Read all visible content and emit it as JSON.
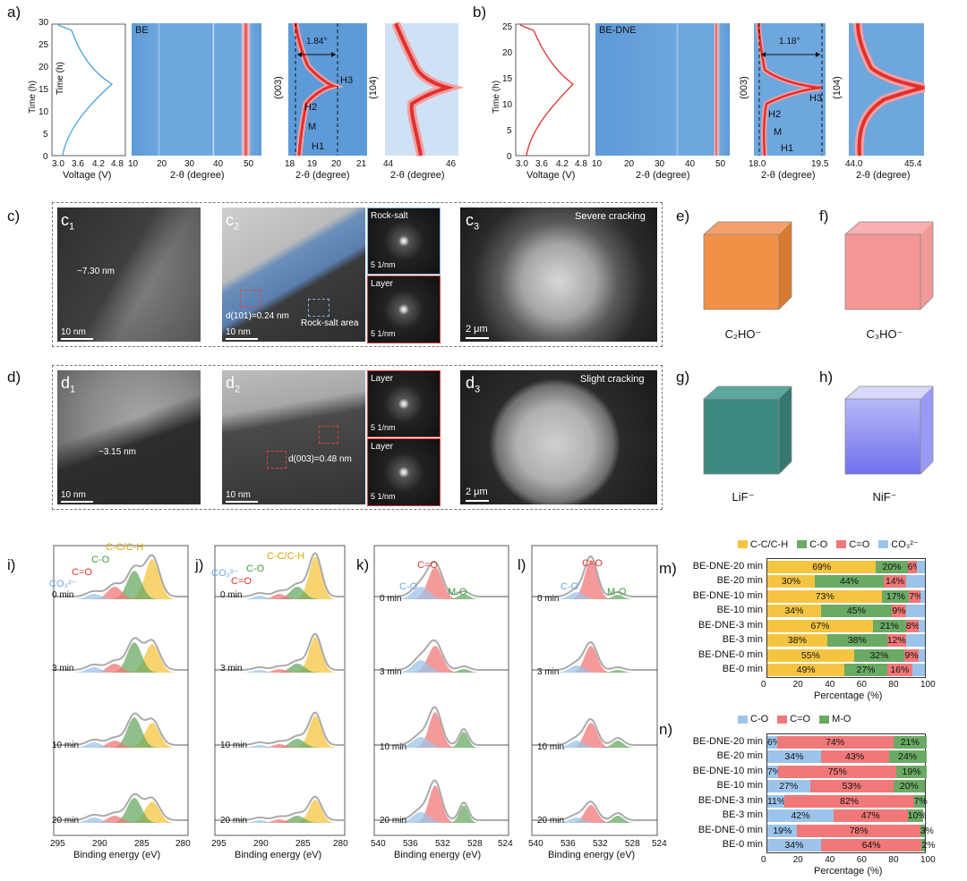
{
  "panel_labels": {
    "a": "a)",
    "b": "b)",
    "c": "c)",
    "d": "d)",
    "e": "e)",
    "f": "f)",
    "g": "g)",
    "h": "h)",
    "i": "i)",
    "j": "j)",
    "k": "k)",
    "l": "l)",
    "m": "m)",
    "n": "n)"
  },
  "panel_a": {
    "ylabel": "Time (h)",
    "yticks": [
      "0",
      "5",
      "10",
      "15",
      "20",
      "25",
      "30"
    ],
    "voltage_xlabel": "Voltage (V)",
    "voltage_xticks": [
      "3.0",
      "3.6",
      "4.2",
      "4.8"
    ],
    "map_label": "BE",
    "map_xticks": [
      "10",
      "20",
      "30",
      "40",
      "50"
    ],
    "xlabel": "2-θ (degree)",
    "zoom_003_ylabel": "(003)",
    "zoom_003_xticks": [
      "18",
      "19",
      "20",
      "21"
    ],
    "shift": "1.84°",
    "phases": [
      "H3",
      "H2",
      "M",
      "H1"
    ],
    "zoom_104_ylabel": "(104)",
    "zoom_104_xticks": [
      "44",
      "46"
    ]
  },
  "panel_b": {
    "ylabel": "Time (h)",
    "yticks": [
      "0",
      "5",
      "10",
      "15",
      "20",
      "25"
    ],
    "voltage_xlabel": "Voltage (V)",
    "voltage_xticks": [
      "3.0",
      "3.6",
      "4.2",
      "4.8"
    ],
    "map_label": "BE-DNE",
    "map_xticks": [
      "10",
      "20",
      "30",
      "40",
      "50"
    ],
    "xlabel": "2-θ (degree)",
    "zoom_003_ylabel": "(003)",
    "zoom_003_xticks": [
      "18.0",
      "19.5"
    ],
    "shift": "1.18°",
    "phases": [
      "H3",
      "H2",
      "M",
      "H1"
    ],
    "zoom_104_ylabel": "(104)",
    "zoom_104_xticks": [
      "44.0",
      "45.4"
    ]
  },
  "panel_c": {
    "c1": {
      "tag": "c",
      "sub": "1",
      "thickness": "~7.30 nm",
      "scale": "10 nm"
    },
    "c2": {
      "tag": "c",
      "sub": "2",
      "spacing": "d(101)=0.24 nm",
      "region": "Rock-salt area",
      "scale": "10 nm"
    },
    "fft_top": {
      "label": "Rock-salt",
      "scale": "5 1/nm"
    },
    "fft_bottom": {
      "label": "Layer",
      "scale": "5 1/nm"
    },
    "c3": {
      "tag": "c",
      "sub": "3",
      "note": "Severe cracking",
      "scale": "2 μm"
    }
  },
  "panel_d": {
    "d1": {
      "tag": "d",
      "sub": "1",
      "thickness": "~3.15 nm",
      "scale": "10 nm"
    },
    "d2": {
      "tag": "d",
      "sub": "2",
      "spacing": "d(003)=0.48 nm",
      "scale": "10 nm"
    },
    "fft_top": {
      "label": "Layer",
      "scale": "5 1/nm"
    },
    "fft_bottom": {
      "label": "Layer",
      "scale": "5 1/nm"
    },
    "d3": {
      "tag": "d",
      "sub": "3",
      "note": "Slight cracking",
      "scale": "2 μm"
    }
  },
  "cubes": [
    {
      "label": "C₂HO⁻",
      "color": "#f08a3c"
    },
    {
      "label": "C₃HO⁻",
      "color": "#f58a8a"
    },
    {
      "label": "LiF⁻",
      "color": "#3d8a80"
    },
    {
      "label": "NiF⁻",
      "color": "#8080f0"
    }
  ],
  "xps": {
    "xlabel": "Binding energy (eV)",
    "times": [
      "0 min",
      "3 min",
      "10 min",
      "20 min"
    ],
    "i": {
      "xticks": [
        "295",
        "290",
        "285",
        "280"
      ],
      "peaks": [
        "C-C/C-H",
        "C-O",
        "C=O",
        "CO₃²⁻"
      ]
    },
    "j": {
      "xticks": [
        "295",
        "290",
        "285",
        "280"
      ],
      "peaks": [
        "C-C/C-H",
        "C-O",
        "C=O",
        "CO₃²⁻"
      ]
    },
    "k": {
      "xticks": [
        "540",
        "536",
        "532",
        "528",
        "524"
      ],
      "peaks": [
        "C=O",
        "C-O",
        "M-O"
      ]
    },
    "l": {
      "xticks": [
        "540",
        "536",
        "532",
        "528",
        "524"
      ],
      "peaks": [
        "C=O",
        "C-O",
        "M-O"
      ]
    }
  },
  "chart_data": [
    {
      "type": "bar",
      "orientation": "horizontal-stacked",
      "categories": [
        "BE-DNE-20 min",
        "BE-20 min",
        "BE-DNE-10 min",
        "BE-10 min",
        "BE-DNE-3 min",
        "BE-3 min",
        "BE-DNE-0 min",
        "BE-0 min"
      ],
      "legend": [
        "C-C/C-H",
        "C-O",
        "C=O",
        "CO₃²⁻"
      ],
      "colors": [
        "#f5c542",
        "#6aaa64",
        "#f07878",
        "#9cc4ea"
      ],
      "series": [
        {
          "name": "C-C/C-H",
          "values": [
            69,
            30,
            73,
            34,
            67,
            38,
            55,
            49
          ]
        },
        {
          "name": "C-O",
          "values": [
            20,
            44,
            17,
            45,
            21,
            38,
            32,
            27
          ]
        },
        {
          "name": "C=O",
          "values": [
            6,
            14,
            7,
            9,
            8,
            12,
            9,
            16
          ]
        },
        {
          "name": "CO₃²⁻",
          "values": [
            5,
            12,
            3,
            12,
            4,
            12,
            4,
            8
          ]
        }
      ],
      "labels_shown": [
        [
          "69%",
          "20%",
          "6%"
        ],
        [
          "30%",
          "44%",
          "14%"
        ],
        [
          "73%",
          "17%",
          "7%"
        ],
        [
          "34%",
          "45%",
          "9%"
        ],
        [
          "67%",
          "21%",
          "8%"
        ],
        [
          "38%",
          "38%",
          "12%"
        ],
        [
          "55%",
          "32%",
          "9%"
        ],
        [
          "49%",
          "27%",
          "16%"
        ]
      ],
      "xlabel": "Percentage (%)",
      "xticks": [
        "0",
        "20",
        "40",
        "60",
        "80",
        "100"
      ],
      "xlim": [
        0,
        100
      ]
    },
    {
      "type": "bar",
      "orientation": "horizontal-stacked",
      "categories": [
        "BE-DNE-20 min",
        "BE-20 min",
        "BE-DNE-10 min",
        "BE-10 min",
        "BE-DNE-3 min",
        "BE-3 min",
        "BE-DNE-0 min",
        "BE-0 min"
      ],
      "legend": [
        "C-O",
        "C=O",
        "M-O"
      ],
      "colors": [
        "#9cc4ea",
        "#f07878",
        "#6aaa64"
      ],
      "series": [
        {
          "name": "C-O",
          "values": [
            6,
            34,
            7,
            27,
            11,
            42,
            19,
            34
          ]
        },
        {
          "name": "C=O",
          "values": [
            74,
            43,
            75,
            53,
            82,
            47,
            78,
            64
          ]
        },
        {
          "name": "M-O",
          "values": [
            21,
            24,
            19,
            20,
            7,
            10,
            3,
            2
          ]
        }
      ],
      "labels_shown": [
        [
          "6%",
          "74%",
          "21%"
        ],
        [
          "34%",
          "43%",
          "24%"
        ],
        [
          "7%",
          "75%",
          "19%"
        ],
        [
          "27%",
          "53%",
          "20%"
        ],
        [
          "11%",
          "82%",
          "7%"
        ],
        [
          "42%",
          "47%",
          "10%"
        ],
        [
          "19%",
          "78%",
          "3%"
        ],
        [
          "34%",
          "64%",
          "2%"
        ]
      ],
      "xlabel": "Percentage (%)",
      "xticks": [
        "0",
        "20",
        "40",
        "60",
        "80",
        "100"
      ],
      "xlim": [
        0,
        100
      ]
    }
  ]
}
